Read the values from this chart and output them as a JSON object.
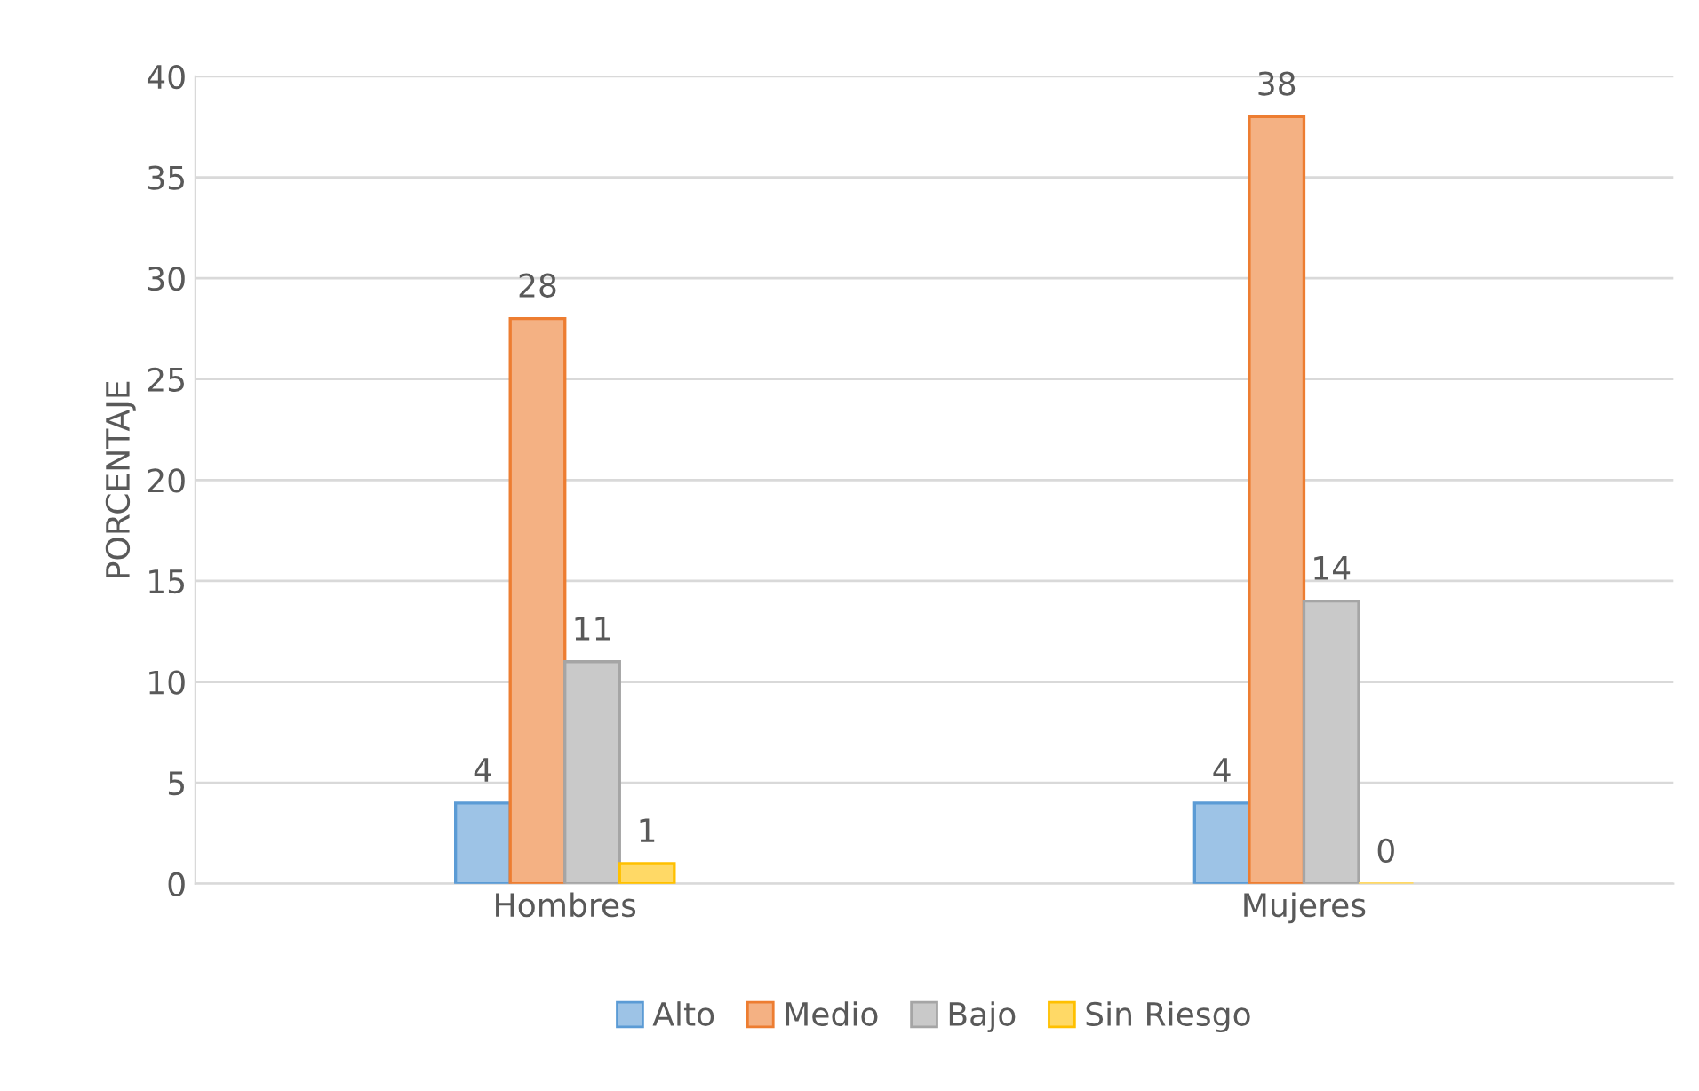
{
  "chart_data": {
    "type": "bar",
    "ylabel": "PORCENTAJE",
    "categories": [
      "Hombres",
      "Mujeres"
    ],
    "series": [
      {
        "name": "Alto",
        "color": "#9dc3e6",
        "values": [
          4,
          4
        ]
      },
      {
        "name": "Medio",
        "color": "#f4b183",
        "values": [
          28,
          38
        ]
      },
      {
        "name": "Bajo",
        "color": "#c9c9c9",
        "values": [
          11,
          14
        ]
      },
      {
        "name": "Sin Riesgo",
        "color": "#ffd966",
        "values": [
          1,
          0
        ]
      }
    ],
    "ylim": [
      0,
      40
    ],
    "yticks": [
      0,
      5,
      10,
      15,
      20,
      25,
      30,
      35,
      40
    ],
    "grid": "y",
    "legend": "bottom",
    "data_labels": true
  }
}
